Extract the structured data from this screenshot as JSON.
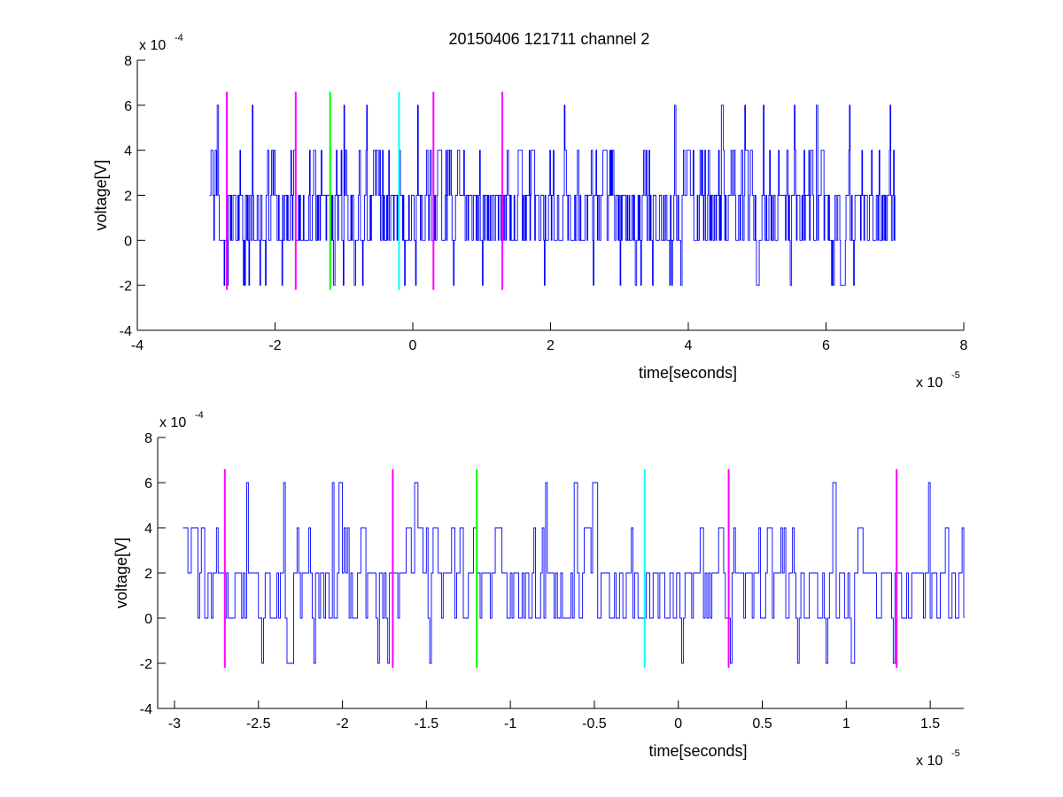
{
  "figure": {
    "title": "20150406 121711 channel 2"
  },
  "colors": {
    "signal": "#0000ff",
    "magenta": "#ff00ff",
    "green": "#00ff00",
    "cyan": "#00ffff",
    "axis": "#000000",
    "background": "#ffffff"
  },
  "chart_data": [
    {
      "type": "line",
      "title": "20150406 121711 channel 2",
      "xlabel": "time[seconds]",
      "ylabel": "voltage[V]",
      "x_exponent_label": "x 10",
      "x_exponent": "-5",
      "y_exponent_label": "x 10",
      "y_exponent": "-4",
      "xlim": [
        -4,
        8
      ],
      "ylim": [
        -4,
        8
      ],
      "xticks": [
        -4,
        -2,
        0,
        2,
        4,
        6,
        8
      ],
      "yticks": [
        -4,
        -2,
        0,
        2,
        4,
        6,
        8
      ],
      "grid": false,
      "signal": {
        "x_start": -2.95,
        "x_end": 7.0,
        "levels": [
          -2,
          0,
          2,
          4,
          6
        ],
        "baseline": 2
      },
      "markers": [
        {
          "x": -2.7,
          "color": "magenta",
          "y_range": [
            -2.2,
            6.6
          ]
        },
        {
          "x": -1.7,
          "color": "magenta",
          "y_range": [
            -2.2,
            6.6
          ]
        },
        {
          "x": -1.2,
          "color": "green",
          "y_range": [
            -2.2,
            6.6
          ]
        },
        {
          "x": -0.2,
          "color": "cyan",
          "y_range": [
            -2.2,
            6.6
          ]
        },
        {
          "x": 0.3,
          "color": "magenta",
          "y_range": [
            -2.2,
            6.6
          ]
        },
        {
          "x": 1.3,
          "color": "magenta",
          "y_range": [
            -2.2,
            6.6
          ]
        }
      ]
    },
    {
      "type": "line",
      "title": "",
      "xlabel": "time[seconds]",
      "ylabel": "voltage[V]",
      "x_exponent_label": "x 10",
      "x_exponent": "-5",
      "y_exponent_label": "x 10",
      "y_exponent": "-4",
      "xlim": [
        -3.1,
        1.7
      ],
      "ylim": [
        -4,
        8
      ],
      "xticks": [
        -3,
        -2.5,
        -2,
        -1.5,
        -1,
        -0.5,
        0,
        0.5,
        1,
        1.5
      ],
      "yticks": [
        -4,
        -2,
        0,
        2,
        4,
        6,
        8
      ],
      "grid": false,
      "signal": {
        "x_start": -2.95,
        "x_end": 1.7,
        "levels": [
          -2,
          0,
          2,
          4,
          6
        ],
        "baseline": 2
      },
      "markers": [
        {
          "x": -2.7,
          "color": "magenta",
          "y_range": [
            -2.2,
            6.6
          ]
        },
        {
          "x": -1.7,
          "color": "magenta",
          "y_range": [
            -2.2,
            6.6
          ]
        },
        {
          "x": -1.2,
          "color": "green",
          "y_range": [
            -2.2,
            6.6
          ]
        },
        {
          "x": -0.2,
          "color": "cyan",
          "y_range": [
            -2.2,
            6.6
          ]
        },
        {
          "x": 0.3,
          "color": "magenta",
          "y_range": [
            -2.2,
            6.6
          ]
        },
        {
          "x": 1.3,
          "color": "magenta",
          "y_range": [
            -2.2,
            6.6
          ]
        }
      ]
    }
  ]
}
